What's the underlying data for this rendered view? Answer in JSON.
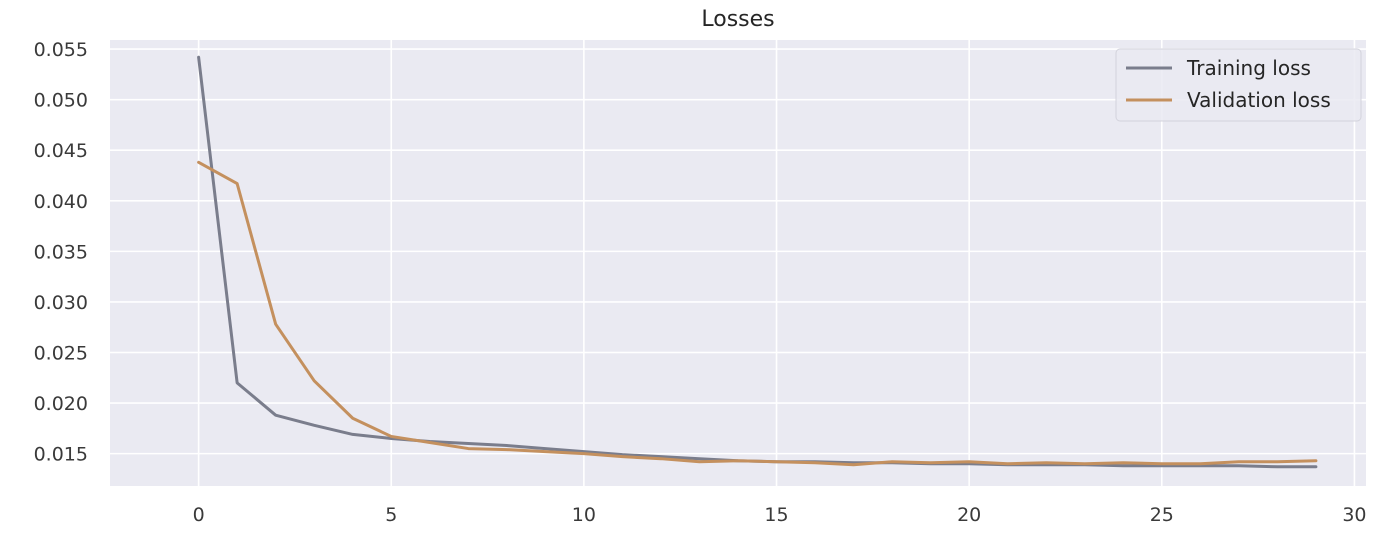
{
  "chart_data": {
    "type": "line",
    "title": "Losses",
    "xlabel": "",
    "ylabel": "",
    "xlim": [
      -2.3,
      30.3
    ],
    "ylim": [
      0.0118,
      0.0559
    ],
    "xticks": [
      0,
      5,
      10,
      15,
      20,
      25,
      30
    ],
    "yticks": [
      0.015,
      0.02,
      0.025,
      0.03,
      0.035,
      0.04,
      0.045,
      0.05,
      0.055
    ],
    "xtick_labels": [
      "0",
      "5",
      "10",
      "15",
      "20",
      "25",
      "30"
    ],
    "ytick_labels": [
      "0.015",
      "0.020",
      "0.025",
      "0.030",
      "0.035",
      "0.040",
      "0.045",
      "0.050",
      "0.055"
    ],
    "grid": true,
    "legend_position": "top-right",
    "background_color": "#eaeaf2",
    "grid_color": "#ffffff",
    "x": [
      0,
      1,
      2,
      3,
      4,
      5,
      6,
      7,
      8,
      9,
      10,
      11,
      12,
      13,
      14,
      15,
      16,
      17,
      18,
      19,
      20,
      21,
      22,
      23,
      24,
      25,
      26,
      27,
      28,
      29
    ],
    "series": [
      {
        "name": "Training loss",
        "color": "#7a7d8c",
        "values": [
          0.0542,
          0.022,
          0.0188,
          0.0178,
          0.0169,
          0.0165,
          0.0162,
          0.016,
          0.0158,
          0.0155,
          0.0152,
          0.0149,
          0.0147,
          0.0145,
          0.0143,
          0.0142,
          0.0142,
          0.0141,
          0.0141,
          0.014,
          0.014,
          0.0139,
          0.0139,
          0.0139,
          0.0138,
          0.0138,
          0.0138,
          0.0138,
          0.0137,
          0.0137
        ]
      },
      {
        "name": "Validation loss",
        "color": "#c4905e",
        "values": [
          0.0438,
          0.0417,
          0.0278,
          0.0222,
          0.0185,
          0.0167,
          0.0161,
          0.0155,
          0.0154,
          0.0152,
          0.015,
          0.0147,
          0.0145,
          0.0142,
          0.0143,
          0.0142,
          0.0141,
          0.0139,
          0.0142,
          0.0141,
          0.0142,
          0.014,
          0.0141,
          0.014,
          0.0141,
          0.014,
          0.014,
          0.0142,
          0.0142,
          0.0143
        ]
      }
    ]
  }
}
